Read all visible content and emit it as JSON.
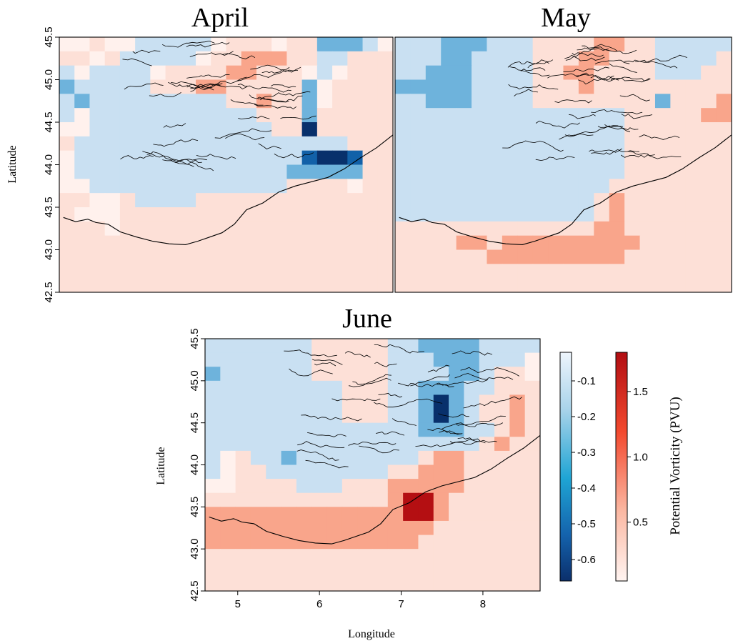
{
  "chart_data": [
    {
      "type": "heatmap",
      "title": "April",
      "ylabel": "Latitude",
      "xlim": [
        4.6,
        8.7
      ],
      "ylim": [
        42.5,
        45.5
      ],
      "y_ticks": [
        "42.5",
        "43.0",
        "43.5",
        "44.0",
        "44.5",
        "45.0",
        "45.5"
      ],
      "rows_from_top": [
        "..r..bbbbb.rrr.rrBBBb.",
        "rr.rbbbbb.rrRRRrrbbrrr",
        "b.bbbb.rrrrRRrrr.b.rrr",
        "BbbbbbrrrRRrrrrrB.rrrr",
        "bBbbbbbbbbbrrRrrB.rrrr",
        "b.bbbbbbbbbbbrrrBrrrrr",
        "..bbbbbbbbbbbbrrZrrrrr",
        "rbbbbbbbbbbbbbbbbbbrrr",
        ".bbbbbbbbbbbbbbbBZZBrr",
        ".bbbbbbbbbbbbbbBBBBBrr",
        "..bbbbbbbbbbbbbrrrr.rr",
        "rr..rbbbbrrrrrrrrrrrrr",
        "r...rrrrrrrrrrrrrrrrrr",
        "rrr.rrrrrrrrrrrrrrrrrr",
        "rrrrrrrrrrrrrrrrrrrrrr",
        "rrrrrrrrrrrrrrrrrrrrrr",
        "rrrrrrrrrrrrrrrrrrrrrr",
        "rrrrrrrrrrrrrrrrrrrrrr"
      ],
      "contour_hatch_columns": [
        6,
        13
      ]
    },
    {
      "type": "heatmap",
      "title": "May",
      "xlim": [
        4.6,
        8.7
      ],
      "ylim": [
        42.5,
        45.5
      ],
      "rows_from_top": [
        "bbbBBBbbbrrrrRRrrbbbbb",
        "bbbBBbbbbrrrRRrrrbbbbr",
        "bbBBBbbbbrrRRrrrrbbbrr",
        "BBBBBbbbbrrrRrrrrrrrrr",
        "bbBBBbbbbrrrrrrrrBrrrR",
        "bbbbbbbbbbbbbbbrrrrrRR",
        "bbbbbbbbbbbbbbbrrrrrrr",
        "bbbbbbbbbbbbbbbrrrrrrr",
        "bbbbbbbbbbbbbbbrrrrrrr",
        "bbbbbbbbbbbbbbbrrrrrrr",
        "bbbbbbbbbbbbbbrrrrrrrr",
        "bbbbbbbbbbbbbrRrrrrrrr",
        "bbbbbbbbbbbbbrRrrrrrrr",
        "rrrrrrrrrrrrrRRrrrrrrr",
        "rrrrRRrRRRRRRRRRrrrrrr",
        "rrrrrrRRRRRRRRRrrrrrrr",
        "rrrrrrrrrrrrrrrrrrrrrr",
        "rrrrrrrrrrrrrrrrrrrrrr"
      ],
      "contour_hatch_columns": [
        9,
        14
      ]
    },
    {
      "type": "heatmap",
      "title": "June",
      "xlabel": "Longitude",
      "ylabel": "Latitude",
      "xlim": [
        4.6,
        8.7
      ],
      "ylim": [
        42.5,
        45.5
      ],
      "x_ticks": [
        "5",
        "6",
        "7",
        "8"
      ],
      "y_ticks": [
        "42.5",
        "43.0",
        "43.5",
        "44.0",
        "44.5",
        "45.0",
        "45.5"
      ],
      "rows_from_top": [
        "bbbbbbbrrrrrbbBBBBbbbb",
        "bbbbbbbrrrrrbbbBBBbbb.",
        "BbbbbbbrrrrrbbbbBBbrr.",
        "bbbbbbbbbrrrbbBBBbbrrr",
        "bbbbbbbbbrrrbbBZBbrrRr",
        "bbbbbbbbbrrrbbBZBbrrRr",
        "bbbbbbbbbbbbbbBBBbbrRr",
        "bbbbbbbbbbbbbbbbbbrRrr",
        "b.rbbBbbbbbbbbrRRrrrrr",
        "b.rrbbbbbbbbrrRRRrrrrr",
        "..rrrrbbbrrrRRRRRrrrrr",
        "rrrrrrrrrrrrRZZRrrrrrr",
        "RRRRRRRRRRRRRZZRrrrrrr",
        "RRRRRRRRRRRRRRRrrrrrrr",
        "RRRRRRRRRRRRRRrrrrrrrr",
        "rrrrrrrrrrrrrrrrrrrrrr",
        "rrrrrrrrrrrrrrrrrrrrrr",
        "rrrrrrrrrrrrrrrrrrrrrr"
      ],
      "contour_hatch_columns": [
        7,
        15
      ]
    }
  ],
  "colorbars": {
    "negative": {
      "ticks": [
        "-0.1",
        "-0.2",
        "-0.3",
        "-0.4",
        "-0.5",
        "-0.6"
      ],
      "range": [
        -0.66,
        -0.02
      ]
    },
    "positive": {
      "ticks": [
        "0.5",
        "1.0",
        "1.5"
      ],
      "range": [
        0.05,
        1.8
      ],
      "label": "Potential Vorticity (PVU)"
    }
  },
  "colors": {
    "blue_scale": [
      "#eaf3fb",
      "#c9e0f2",
      "#a7d0ea",
      "#6eb3dc",
      "#2c8bc7",
      "#1261a8",
      "#08306b"
    ],
    "red_scale": [
      "#fff1ed",
      "#fde0d7",
      "#fbc6b5",
      "#f9a58b",
      "#f3734d",
      "#de3b2a",
      "#b40f12"
    ],
    "coast": "#000000"
  }
}
